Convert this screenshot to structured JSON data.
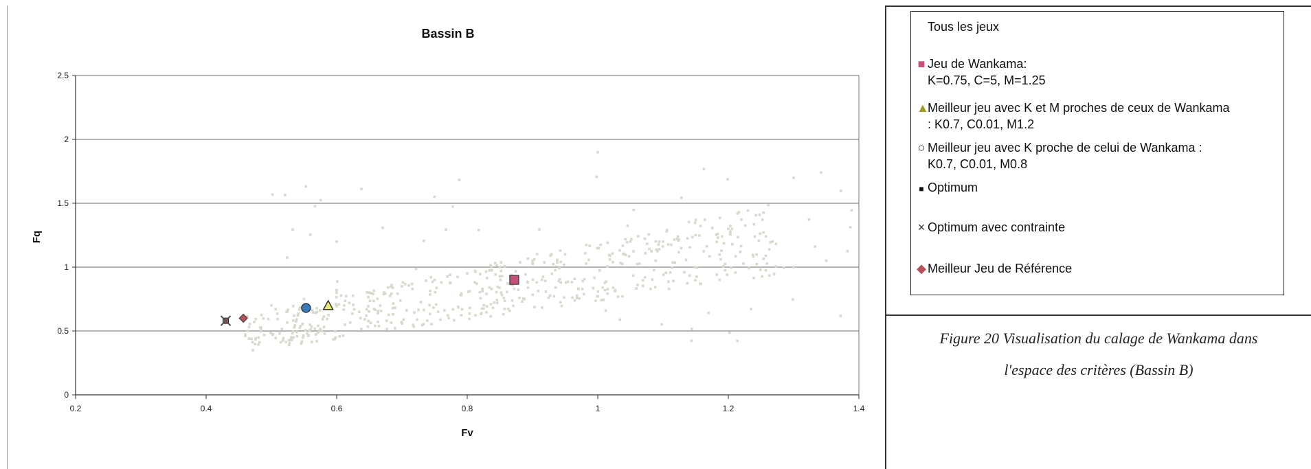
{
  "chart_data": {
    "type": "scatter",
    "title": "Bassin B",
    "xlabel": "Fv",
    "ylabel": "Fq",
    "xlim": [
      0.2,
      1.4
    ],
    "ylim": [
      0,
      2.5
    ],
    "x_ticks": [
      "0.2",
      "0.4",
      "0.6",
      "0.8",
      "1",
      "1.2",
      "1.4"
    ],
    "y_ticks": [
      "0",
      "0.5",
      "1",
      "1.5",
      "2",
      "2.5"
    ],
    "grid": "horizontal",
    "legend_position": "right",
    "series": [
      {
        "name": "Tous les jeux",
        "marker": "dot",
        "color": "#d8d8cc",
        "points": [
          [
            0.5,
            0.7
          ],
          [
            0.55,
            0.75
          ],
          [
            0.6,
            0.8
          ],
          [
            0.65,
            0.8
          ],
          [
            0.7,
            0.85
          ],
          [
            0.75,
            0.9
          ],
          [
            0.8,
            0.95
          ],
          [
            0.85,
            1.0
          ],
          [
            0.9,
            1.05
          ],
          [
            0.95,
            1.1
          ],
          [
            1.0,
            1.15
          ],
          [
            1.05,
            1.2
          ],
          [
            1.1,
            1.2
          ],
          [
            1.15,
            1.25
          ],
          [
            1.2,
            1.3
          ],
          [
            1.3,
            1.7
          ],
          [
            0.6,
            1.2
          ],
          [
            0.75,
            1.55
          ],
          [
            1.0,
            1.9
          ],
          [
            1.3,
            1.0
          ],
          [
            1.35,
            1.05
          ]
        ]
      },
      {
        "name": "Jeu de Wankama:",
        "name_line2": "K=0.75, C=5, M=1.25",
        "marker": "square",
        "color": "#c8507a",
        "points": [
          [
            0.872,
            0.9
          ]
        ]
      },
      {
        "name": "Meilleur jeu avec K et M proches de ceux de Wankama",
        "name_line2": ": K0.7, C0.01, M1.2",
        "marker": "triangle",
        "color": "#e8e870",
        "points": [
          [
            0.587,
            0.7
          ]
        ]
      },
      {
        "name": "Meilleur jeu avec K proche de celui de Wankama :",
        "name_line2": "K0.7, C0.01, M0.8",
        "marker": "circle",
        "color": "#3a7ab8",
        "points": [
          [
            0.553,
            0.68
          ]
        ]
      },
      {
        "name": "Optimum",
        "marker": "filled-square",
        "color": "#111111",
        "points": [
          [
            0.43,
            0.58
          ]
        ]
      },
      {
        "name": "Optimum avec contrainte",
        "marker": "cross",
        "color": "#555555",
        "points": [
          [
            0.43,
            0.58
          ]
        ]
      },
      {
        "name": "Meilleur Jeu de Référence",
        "marker": "diamond",
        "color": "#b8505a",
        "points": [
          [
            0.457,
            0.6
          ]
        ]
      }
    ]
  },
  "legend": {
    "items": [
      {
        "symbol": "",
        "line1": "Tous les jeux",
        "line2": ""
      },
      {
        "symbol": "■",
        "line1": "Jeu de Wankama:",
        "line2": "K=0.75, C=5, M=1.25"
      },
      {
        "symbol": "▲",
        "line1": "Meilleur jeu avec K et M proches de ceux de Wankama",
        "line2": ": K0.7, C0.01, M1.2"
      },
      {
        "symbol": "○",
        "line1": "Meilleur jeu avec K proche de celui de Wankama :",
        "line2": "K0.7, C0.01, M0.8"
      },
      {
        "symbol": "■",
        "line1": "Optimum",
        "line2": ""
      },
      {
        "symbol": "×",
        "line1": "Optimum avec contrainte",
        "line2": ""
      },
      {
        "symbol": "◆",
        "line1": "Meilleur Jeu de Référence",
        "line2": ""
      }
    ]
  },
  "caption": {
    "line1": "Figure 20 Visualisation du calage de Wankama dans",
    "line2": "l'espace des critères (Bassin B)"
  }
}
